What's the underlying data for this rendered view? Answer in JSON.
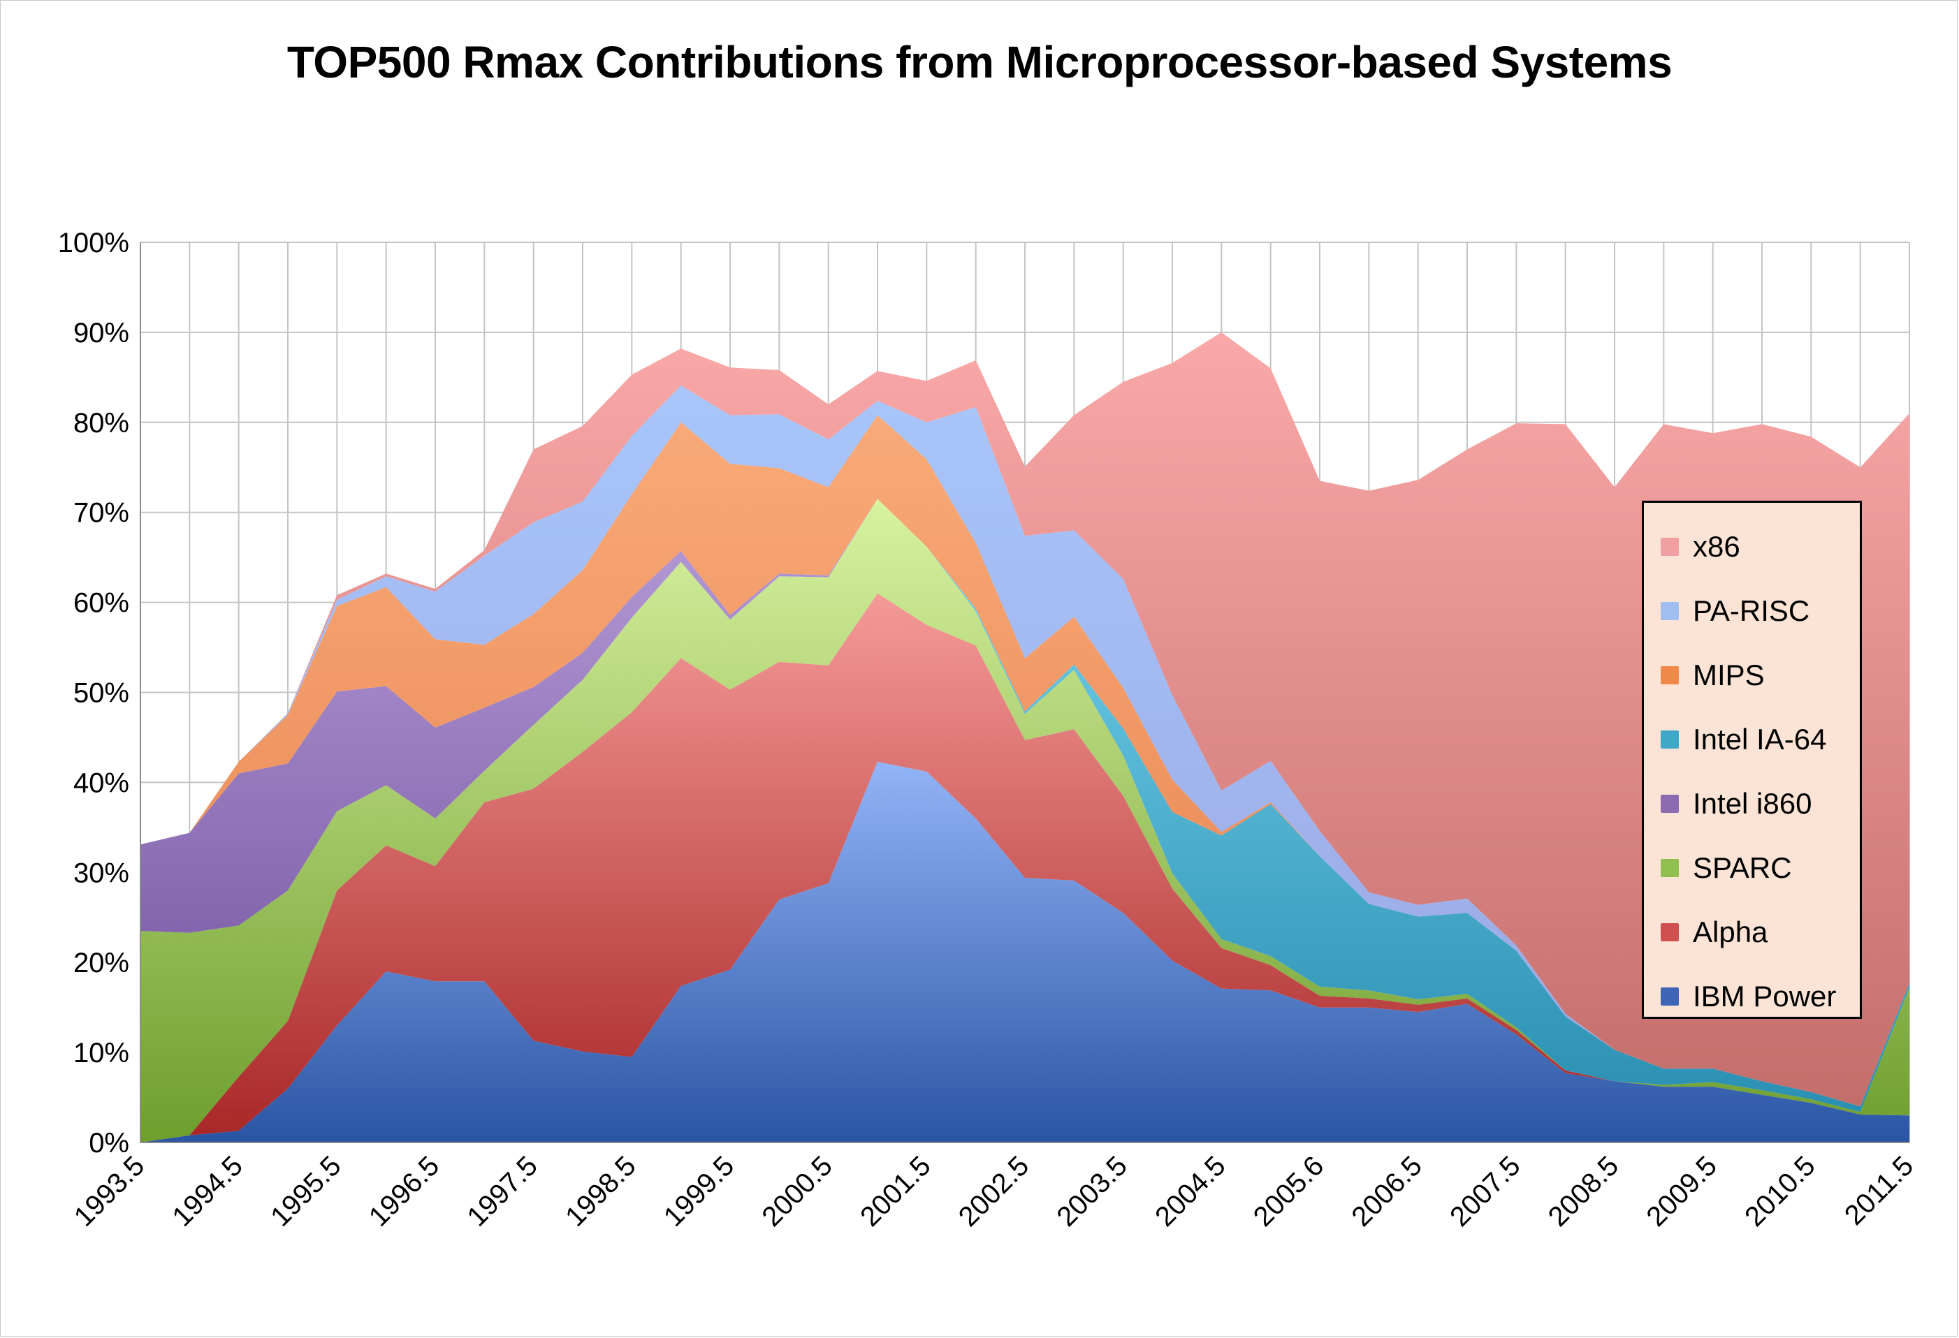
{
  "chart_data": {
    "type": "area",
    "stacked": true,
    "title": "TOP500 Rmax Contributions from Microprocessor-based Systems",
    "xlabel": "",
    "ylabel": "",
    "ylim": [
      0,
      100
    ],
    "yticks": [
      "0%",
      "10%",
      "20%",
      "30%",
      "40%",
      "50%",
      "60%",
      "70%",
      "80%",
      "90%",
      "100%"
    ],
    "x_labels": [
      "1993.5",
      "1994.5",
      "1995.5",
      "1996.5",
      "1997.5",
      "1998.5",
      "1999.5",
      "2000.5",
      "2001.5",
      "2002.5",
      "2003.5",
      "2004.5",
      "2005.6",
      "2006.5",
      "2007.5",
      "2008.5",
      "2009.5",
      "2010.5",
      "2011.5"
    ],
    "grid": true,
    "legend_position": "right",
    "point_count": 37,
    "series": [
      {
        "name": "IBM Power",
        "color": "#3f65b5",
        "values": [
          0,
          0.8,
          1.3,
          6,
          13,
          19,
          17.9,
          17.9,
          11.3,
          10.1,
          9.5,
          17.4,
          19.2,
          27,
          28.8,
          42.3,
          41.2,
          36,
          29.4,
          29.1,
          25.5,
          20.2,
          17.1,
          16.9,
          15,
          15,
          14.5,
          15.4,
          12,
          7.7,
          6.8,
          6.2,
          6.2,
          5.3,
          4.4,
          3.1,
          3
        ]
      },
      {
        "name": "Alpha",
        "color": "#d05050",
        "values": [
          0,
          0,
          6,
          7.5,
          15,
          14,
          12.8,
          19.9,
          28,
          33.3,
          38.3,
          36.4,
          31.1,
          26.4,
          24.2,
          18.7,
          16.3,
          19.2,
          15.3,
          16.8,
          13,
          8,
          4.5,
          2.8,
          1.3,
          1,
          0.8,
          0.6,
          0.5,
          0.3,
          0,
          0,
          0,
          0,
          0,
          0,
          0
        ]
      },
      {
        "name": "SPARC",
        "color": "#8fbf4e",
        "values": [
          23.5,
          22.5,
          16.8,
          14.5,
          8.8,
          6.7,
          5.3,
          3.5,
          7.1,
          8,
          10.5,
          10.7,
          7.8,
          9.5,
          9.8,
          10.5,
          8.7,
          3.8,
          2.9,
          6.6,
          4.5,
          1.7,
          1,
          1,
          1,
          0.9,
          0.6,
          0.5,
          0.3,
          0,
          0,
          0.2,
          0.5,
          0.5,
          0.4,
          0.3,
          14.2
        ]
      },
      {
        "name": "Intel i860",
        "color": "#8c6bb1",
        "values": [
          9.6,
          11.1,
          16.9,
          14.1,
          13.3,
          11,
          10.1,
          7,
          4.2,
          3,
          2.3,
          1.2,
          0.5,
          0.3,
          0.2,
          0,
          0,
          0,
          0,
          0,
          0,
          0,
          0,
          0,
          0,
          0,
          0,
          0,
          0,
          0,
          0,
          0,
          0,
          0,
          0,
          0,
          0
        ]
      },
      {
        "name": "Intel IA-64",
        "color": "#3fa8c8",
        "values": [
          0,
          0,
          0,
          0,
          0,
          0,
          0,
          0,
          0,
          0,
          0,
          0,
          0,
          0,
          0,
          0,
          0,
          0.3,
          0.3,
          0.6,
          3,
          6.8,
          11.5,
          16.9,
          14.5,
          9.6,
          9.2,
          9,
          8.5,
          6,
          3.5,
          1.8,
          1.5,
          1,
          0.8,
          0.6,
          0.5
        ]
      },
      {
        "name": "MIPS",
        "color": "#f0884a",
        "values": [
          0,
          0,
          1.3,
          5.4,
          9.5,
          11,
          9.8,
          7,
          8.1,
          9.2,
          11.4,
          14.3,
          16.8,
          11.7,
          9.8,
          9.3,
          9.7,
          7.3,
          5.9,
          5.3,
          4.5,
          3.6,
          0.4,
          0.2,
          0,
          0,
          0,
          0,
          0,
          0,
          0,
          0,
          0,
          0,
          0,
          0,
          0
        ]
      },
      {
        "name": "PA-RISC",
        "color": "#a0bff0",
        "values": [
          0,
          0,
          0,
          0.2,
          0.7,
          1.2,
          5.3,
          9.9,
          10.2,
          7.6,
          6.5,
          4.1,
          5.4,
          6,
          5.3,
          1.6,
          4.1,
          15.1,
          13.6,
          9.6,
          12.1,
          9.4,
          4.6,
          4.6,
          2.8,
          1.3,
          1.3,
          1.6,
          0.6,
          0.3,
          0,
          0,
          0,
          0,
          0,
          0,
          0
        ]
      },
      {
        "name": "x86",
        "color": "#f0a0a0",
        "values": [
          0,
          0,
          0,
          0,
          0.5,
          0.3,
          0.3,
          0.6,
          8.1,
          8.4,
          6.8,
          4.1,
          5.3,
          4.9,
          3.9,
          3.3,
          4.6,
          5.2,
          7.7,
          12.8,
          21.9,
          36.9,
          50.9,
          43.6,
          38.9,
          44.6,
          47.2,
          49.9,
          58,
          65.5,
          62.5,
          71.6,
          70.6,
          73,
          72.8,
          71,
          63.3
        ]
      }
    ]
  }
}
